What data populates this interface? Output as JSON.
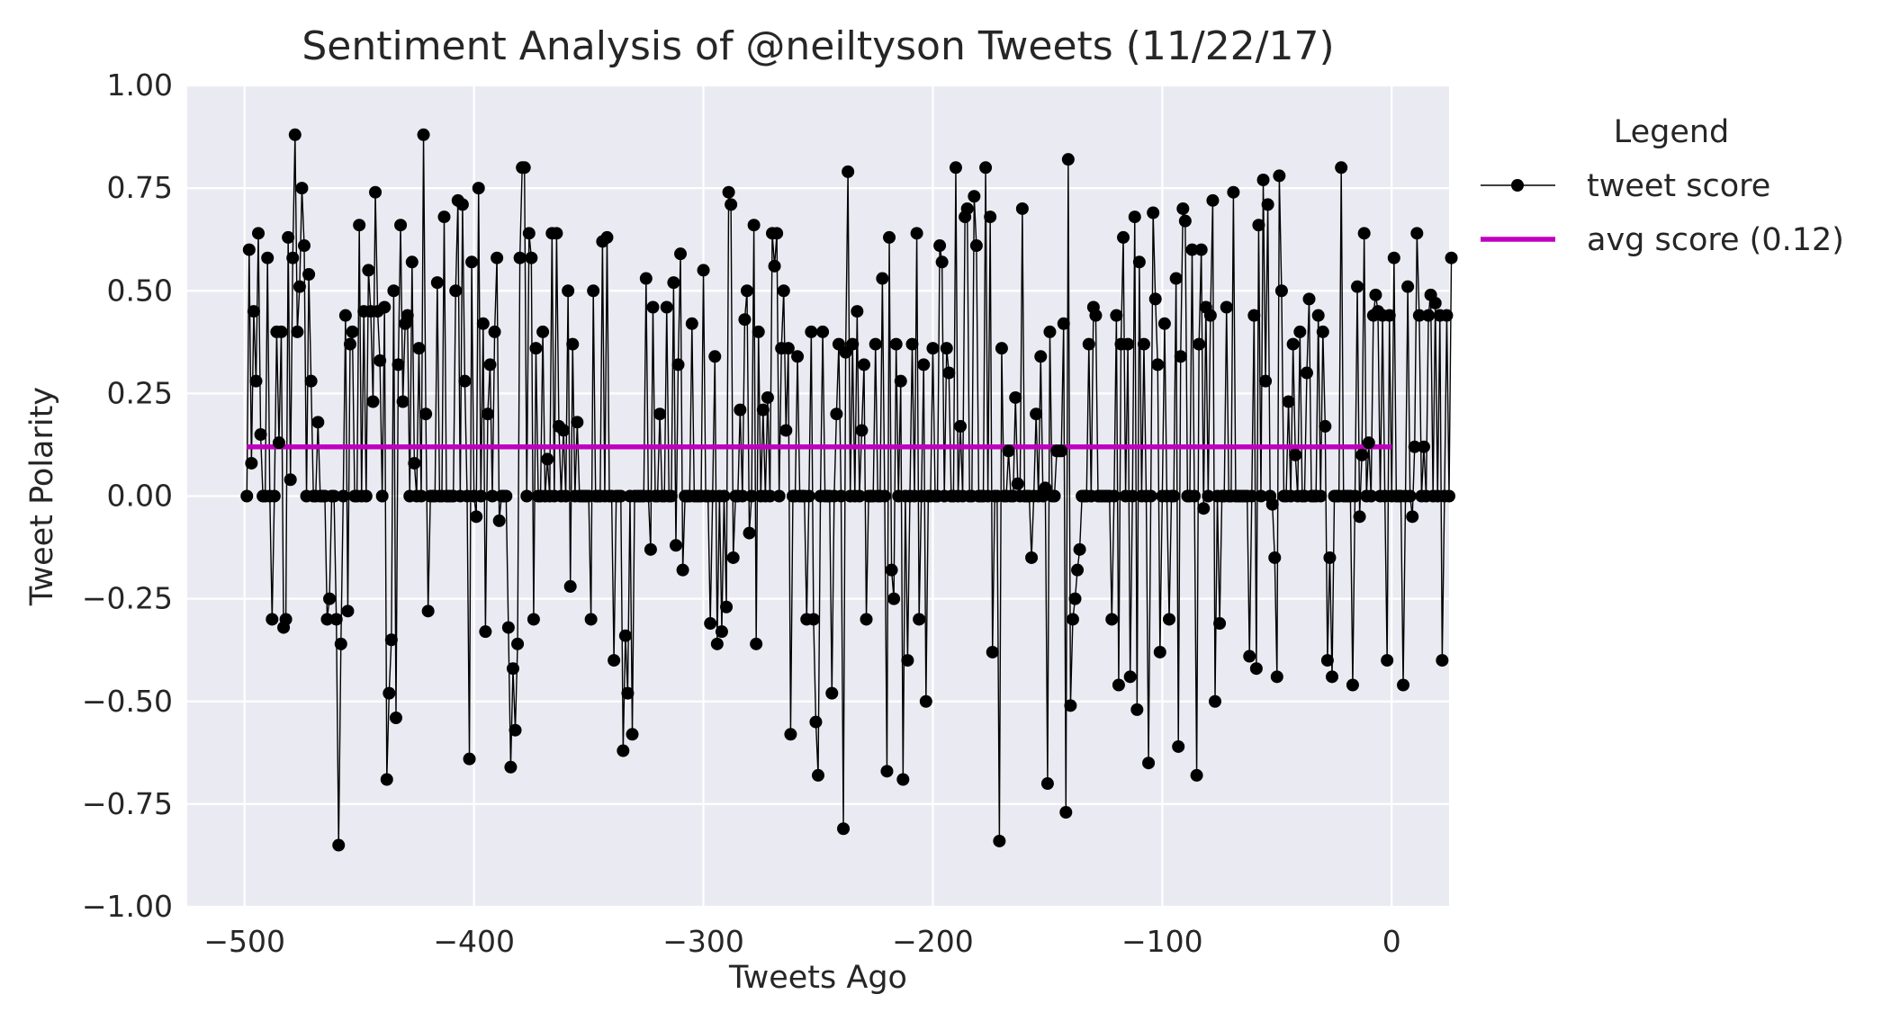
{
  "chart_data": {
    "type": "line",
    "title": "Sentiment Analysis of @neiltyson Tweets (11/22/17)",
    "xlabel": "Tweets Ago",
    "ylabel": "Tweet Polarity",
    "xlim": [
      -525,
      25
    ],
    "ylim": [
      -1.0,
      1.0
    ],
    "xticks": [
      -500,
      -400,
      -300,
      -200,
      -100,
      0
    ],
    "xtick_labels": [
      "−500",
      "−400",
      "−300",
      "−200",
      "−100",
      "0"
    ],
    "yticks": [
      -1.0,
      -0.75,
      -0.5,
      -0.25,
      0.0,
      0.25,
      0.5,
      0.75,
      1.0
    ],
    "ytick_labels": [
      "−1.00",
      "−0.75",
      "−0.50",
      "−0.25",
      "0.00",
      "0.25",
      "0.50",
      "0.75",
      "1.00"
    ],
    "grid": true,
    "legend": {
      "title": "Legend",
      "placement": "outside-right"
    },
    "series": [
      {
        "name": "tweet score",
        "style": "line-marker",
        "color": "#000000",
        "x_start": -499,
        "x_step": 1,
        "values": [
          0,
          0.6,
          0.08,
          0.45,
          0.28,
          0.64,
          0.15,
          0,
          0,
          0.58,
          0,
          -0.3,
          0,
          0.4,
          0.13,
          0.4,
          -0.32,
          -0.3,
          0.63,
          0.04,
          0.58,
          0.88,
          0.4,
          0.51,
          0.75,
          0.61,
          0,
          0.54,
          0.28,
          0,
          0,
          0.18,
          0,
          0,
          0,
          -0.3,
          -0.25,
          0,
          0,
          -0.3,
          -0.85,
          -0.36,
          0,
          0.44,
          -0.28,
          0.37,
          0.4,
          0,
          0,
          0.66,
          0,
          0.45,
          0,
          0.55,
          0.45,
          0.23,
          0.74,
          0.45,
          0.33,
          0,
          0.46,
          -0.69,
          -0.48,
          -0.35,
          0.5,
          -0.54,
          0.32,
          0.66,
          0.23,
          0.42,
          0.44,
          0,
          0.57,
          0.08,
          0,
          0.36,
          0,
          0.88,
          0.2,
          -0.28,
          0,
          0,
          0,
          0.52,
          0,
          0,
          0.68,
          0,
          0,
          0,
          0,
          0.5,
          0.72,
          0,
          0.71,
          0.28,
          0,
          -0.64,
          0.57,
          0,
          -0.05,
          0.75,
          0,
          0.42,
          -0.33,
          0.2,
          0.32,
          0,
          0.4,
          0.58,
          -0.06,
          0,
          0,
          0,
          -0.32,
          -0.66,
          -0.42,
          -0.57,
          -0.36,
          0.58,
          0.8,
          0.8,
          0,
          0.64,
          0.58,
          -0.3,
          0.36,
          0,
          0,
          0.4,
          0,
          0.09,
          0,
          0.64,
          0,
          0.64,
          0.17,
          0,
          0.16,
          0,
          0.5,
          -0.22,
          0.37,
          0,
          0.18,
          0,
          0,
          0,
          0,
          0,
          -0.3,
          0.5,
          0,
          0,
          0,
          0.62,
          0,
          0.63,
          0,
          0,
          -0.4,
          0,
          0,
          0,
          -0.62,
          -0.34,
          -0.48,
          0,
          -0.58,
          0,
          0,
          0,
          0,
          0,
          0.53,
          0,
          -0.13,
          0.46,
          0,
          0,
          0.2,
          0,
          0,
          0.46,
          0,
          0,
          0.52,
          -0.12,
          0.32,
          0.59,
          -0.18,
          0,
          0,
          0,
          0.42,
          0,
          0,
          0,
          0,
          0.55,
          0,
          0,
          -0.31,
          0,
          0.34,
          -0.36,
          0,
          -0.33,
          0,
          -0.27,
          0.74,
          0.71,
          -0.15,
          0,
          0,
          0.21,
          0,
          0.43,
          0.5,
          -0.09,
          0,
          0.66,
          -0.36,
          0.4,
          0,
          0.21,
          0,
          0.24,
          0,
          0.64,
          0.56,
          0.64,
          0,
          0.36,
          0.5,
          0.16,
          0.36,
          -0.58,
          0,
          0,
          0.34,
          0,
          0,
          0,
          -0.3,
          0,
          0.4,
          -0.3,
          -0.55,
          -0.68,
          0,
          0.4,
          0,
          0,
          0,
          -0.48,
          0,
          0.2,
          0.37,
          0,
          -0.81,
          0.35,
          0.79,
          0,
          0.37,
          0,
          0.45,
          0,
          0.16,
          0.32,
          -0.3,
          0,
          0,
          0,
          0.37,
          0,
          0,
          0.53,
          0,
          -0.67,
          0.63,
          -0.18,
          -0.25,
          0.37,
          0,
          0.28,
          -0.69,
          0,
          -0.4,
          0,
          0.37,
          0,
          0.64,
          -0.3,
          0,
          0.32,
          -0.5,
          0,
          0,
          0.36,
          0,
          0,
          0.61,
          0.57,
          0,
          0.36,
          0.3,
          0,
          0,
          0.8,
          0,
          0.17,
          0,
          0.68,
          0.7,
          0,
          0,
          0.73,
          0.61,
          0,
          0,
          0,
          0.8,
          0,
          0.68,
          -0.38,
          0,
          0,
          -0.84,
          0.36,
          0,
          0,
          0.11,
          0,
          0,
          0.24,
          0.03,
          0,
          0.7,
          0,
          0,
          0,
          -0.15,
          0,
          0.2,
          0,
          0.34,
          0,
          0.02,
          -0.7,
          0.4,
          0,
          0,
          0.11,
          0.11,
          0.11,
          0.42,
          -0.77,
          0.82,
          -0.51,
          -0.3,
          -0.25,
          -0.18,
          -0.13,
          0,
          0,
          0,
          0.37,
          0,
          0.46,
          0.44,
          0,
          0,
          0,
          0,
          0,
          0,
          -0.3,
          0,
          0.44,
          -0.46,
          0.37,
          0.63,
          0,
          0.37,
          -0.44,
          0,
          0.68,
          -0.52,
          0.57,
          0,
          0.37,
          0,
          -0.65,
          0,
          0.69,
          0.48,
          0.32,
          -0.38,
          0,
          0.42,
          0,
          -0.3,
          0,
          0,
          0.53,
          -0.61,
          0.34,
          0.7,
          0.67,
          0,
          0,
          0.6,
          0,
          -0.68,
          0.37,
          0.6,
          -0.03,
          0.46,
          0,
          0.44,
          0.72,
          -0.5,
          0,
          -0.31,
          0,
          0,
          0.46,
          0,
          0,
          0.74,
          0,
          0,
          0,
          0,
          0,
          0,
          -0.39,
          0,
          0.44,
          -0.42,
          0.66,
          0,
          0.77,
          0.28,
          0.71,
          0,
          -0.02,
          -0.15,
          -0.44,
          0.78,
          0.5,
          0,
          0,
          0.23,
          0,
          0.37,
          0.1,
          0,
          0.4,
          0,
          0,
          0.3,
          0.48,
          0,
          0,
          0,
          0.44,
          0,
          0.4,
          0.17,
          -0.4,
          -0.15,
          -0.44,
          0,
          0,
          0,
          0.8,
          0,
          0,
          0,
          0,
          -0.46,
          0,
          0.51,
          -0.05,
          0.1,
          0.64,
          0,
          0.13,
          0,
          0.44,
          0.49,
          0.45,
          0,
          0.44,
          0,
          -0.4,
          0.44,
          0,
          0.58,
          0,
          0,
          0,
          -0.46,
          0,
          0.51,
          0,
          -0.05,
          0.12,
          0.64,
          0.44,
          0,
          0.12,
          0,
          0.44,
          0.49,
          0,
          0.47,
          0,
          0.44,
          -0.4,
          0,
          0.44,
          0,
          0.58
        ]
      },
      {
        "name": "avg score (0.12)",
        "style": "line",
        "color": "#bf00bf",
        "x": [
          -499,
          0
        ],
        "values": [
          0.12,
          0.12
        ]
      }
    ]
  }
}
